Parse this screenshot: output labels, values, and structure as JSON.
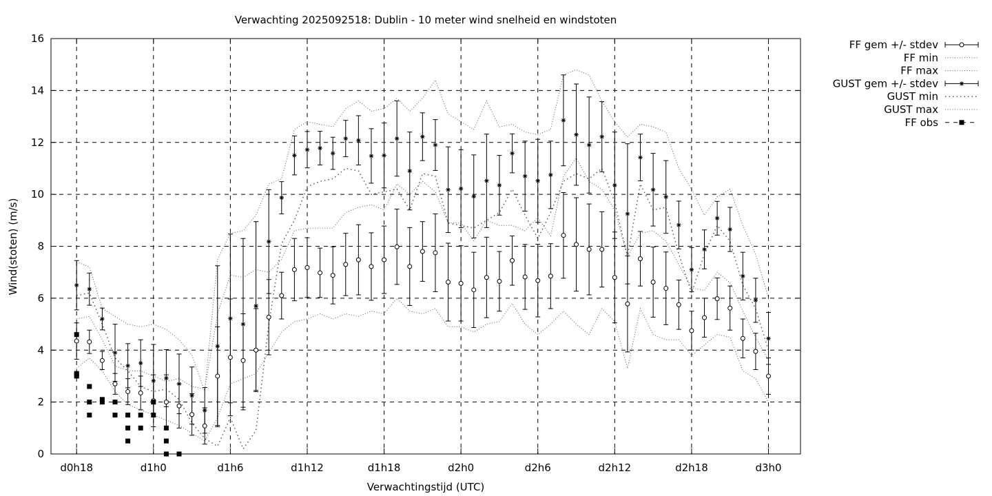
{
  "chart_data": {
    "type": "line",
    "title": "Verwachting 2025092518: Dublin - 10 meter wind snelheid en windstoten",
    "xlabel": "Verwachtingstijd (UTC)",
    "ylabel": "Wind(stoten) (m/s)",
    "x_unit": "hours since d0h18",
    "xlim": [
      -2,
      56.5
    ],
    "ylim": [
      0,
      16
    ],
    "yticks": [
      0,
      2,
      4,
      6,
      8,
      10,
      12,
      14,
      16
    ],
    "xticks": [
      {
        "x": 0,
        "label": "d0h18"
      },
      {
        "x": 6,
        "label": "d1h0"
      },
      {
        "x": 12,
        "label": "d1h6"
      },
      {
        "x": 18,
        "label": "d1h12"
      },
      {
        "x": 24,
        "label": "d1h18"
      },
      {
        "x": 30,
        "label": "d2h0"
      },
      {
        "x": 36,
        "label": "d2h6"
      },
      {
        "x": 42,
        "label": "d2h12"
      },
      {
        "x": 48,
        "label": "d2h18"
      },
      {
        "x": 54,
        "label": "d3h0"
      }
    ],
    "grid": true,
    "legend_position": "outside-top-right",
    "legend": [
      {
        "label": "FF gem +/- stdev",
        "style": "errorbar-circle"
      },
      {
        "label": "FF min",
        "style": "dotted"
      },
      {
        "label": "FF max",
        "style": "dotted"
      },
      {
        "label": "GUST gem +/- stdev",
        "style": "errorbar-star"
      },
      {
        "label": "GUST min",
        "style": "sparse-dotted"
      },
      {
        "label": "GUST max",
        "style": "dotted"
      },
      {
        "label": "FF obs",
        "style": "square-dashed"
      }
    ],
    "x": [
      0,
      1,
      2,
      3,
      4,
      5,
      6,
      7,
      8,
      9,
      10,
      11,
      12,
      13,
      14,
      15,
      16,
      17,
      18,
      19,
      20,
      21,
      22,
      23,
      24,
      25,
      26,
      27,
      28,
      29,
      30,
      31,
      32,
      33,
      34,
      35,
      36,
      37,
      38,
      39,
      40,
      41,
      42,
      43,
      44,
      45,
      46,
      47,
      48,
      49,
      50,
      51,
      52,
      53,
      54
    ],
    "ff_mean": [
      4.35,
      4.32,
      3.6,
      2.7,
      2.4,
      2.35,
      2.05,
      2.0,
      1.85,
      1.52,
      1.08,
      3.0,
      3.72,
      3.6,
      4.0,
      5.27,
      6.1,
      7.1,
      7.18,
      6.98,
      6.88,
      7.3,
      7.48,
      7.22,
      7.48,
      7.98,
      7.22,
      7.8,
      7.75,
      6.62,
      6.57,
      6.32,
      6.8,
      6.65,
      7.45,
      6.82,
      6.68,
      6.85,
      8.42,
      8.07,
      7.88,
      7.88,
      6.8,
      5.78,
      7.52,
      6.62,
      6.38,
      5.75,
      4.75,
      5.25,
      5.98,
      5.62,
      4.45,
      3.95,
      3.0
    ],
    "ff_sd": [
      0.7,
      0.45,
      0.35,
      0.4,
      0.5,
      0.65,
      1.0,
      1.05,
      0.85,
      0.8,
      0.7,
      1.9,
      2.25,
      1.8,
      1.6,
      1.45,
      0.9,
      1.2,
      1.15,
      0.95,
      1.1,
      1.2,
      1.35,
      1.3,
      1.3,
      1.45,
      1.5,
      1.15,
      1.5,
      1.5,
      1.45,
      1.45,
      1.55,
      1.15,
      0.95,
      1.25,
      1.4,
      1.25,
      1.65,
      1.8,
      1.75,
      1.45,
      1.75,
      1.85,
      1.05,
      1.35,
      1.4,
      0.95,
      0.75,
      0.75,
      0.8,
      0.85,
      0.75,
      0.7,
      0.7
    ],
    "ff_min": [
      3.3,
      3.7,
      3.2,
      2.4,
      1.9,
      1.7,
      1.5,
      1.3,
      1.1,
      0.8,
      0.5,
      1.4,
      2.7,
      2.9,
      3.1,
      3.9,
      4.7,
      5.1,
      5.2,
      5.4,
      5.2,
      5.4,
      5.3,
      5.5,
      5.4,
      6.0,
      5.5,
      5.4,
      5.6,
      4.9,
      4.9,
      4.7,
      5.0,
      5.1,
      5.8,
      5.0,
      4.6,
      5.0,
      5.5,
      5.0,
      4.6,
      5.6,
      5.1,
      3.3,
      5.6,
      4.6,
      4.4,
      4.4,
      3.8,
      4.2,
      4.6,
      4.5,
      3.2,
      2.9,
      2.0
    ],
    "ff_max": [
      5.2,
      5.3,
      4.4,
      3.4,
      3.2,
      3.2,
      3.0,
      2.8,
      2.9,
      2.6,
      2.5,
      5.4,
      6.9,
      6.8,
      7.1,
      7.0,
      7.5,
      8.6,
      8.7,
      8.7,
      8.7,
      9.3,
      9.5,
      9.6,
      9.4,
      10.4,
      10.0,
      10.5,
      10.1,
      8.9,
      8.9,
      8.2,
      9.0,
      8.8,
      8.8,
      8.6,
      9.1,
      8.4,
      10.7,
      11.4,
      10.5,
      10.2,
      9.4,
      7.6,
      8.5,
      8.6,
      8.2,
      7.3,
      6.4,
      6.3,
      7.0,
      6.6,
      5.5,
      4.5,
      3.6
    ],
    "gust_mean": [
      6.5,
      6.35,
      5.2,
      3.9,
      3.4,
      3.5,
      2.82,
      2.92,
      2.7,
      2.25,
      1.68,
      4.15,
      5.22,
      5.0,
      5.7,
      8.18,
      9.87,
      11.5,
      11.72,
      11.78,
      11.58,
      12.15,
      12.08,
      11.48,
      11.5,
      12.15,
      10.9,
      12.22,
      11.9,
      10.18,
      10.22,
      9.92,
      10.52,
      10.35,
      11.58,
      10.7,
      10.52,
      10.75,
      12.85,
      12.3,
      11.9,
      12.22,
      10.35,
      9.25,
      11.42,
      10.18,
      9.9,
      8.82,
      7.1,
      7.88,
      9.08,
      8.65,
      6.85,
      5.92,
      4.45
    ],
    "gust_sd": [
      0.95,
      0.62,
      0.42,
      1.1,
      0.85,
      0.9,
      1.4,
      1.1,
      1.15,
      1.1,
      0.88,
      3.1,
      3.25,
      3.3,
      3.25,
      2.0,
      0.62,
      0.75,
      0.7,
      0.65,
      0.62,
      0.7,
      0.95,
      1.05,
      1.25,
      1.45,
      1.5,
      0.92,
      0.98,
      1.65,
      1.5,
      1.6,
      1.8,
      1.15,
      0.75,
      1.35,
      1.6,
      1.3,
      1.75,
      1.95,
      1.85,
      1.35,
      2.05,
      2.7,
      0.9,
      1.4,
      1.4,
      0.92,
      0.85,
      0.75,
      0.65,
      0.85,
      0.92,
      0.85,
      1.0
    ],
    "gust_min": [
      6.1,
      6.2,
      5.0,
      3.7,
      3.2,
      2.6,
      2.4,
      2.5,
      2.1,
      1.2,
      0.6,
      0.3,
      1.4,
      0.2,
      0.9,
      5.0,
      8.1,
      9.0,
      10.3,
      10.5,
      10.6,
      11.0,
      10.9,
      10.0,
      10.1,
      10.2,
      9.4,
      10.8,
      10.7,
      8.9,
      8.8,
      8.7,
      9.0,
      9.3,
      10.2,
      9.2,
      8.3,
      9.3,
      10.5,
      10.8,
      10.6,
      11.0,
      9.7,
      7.6,
      10.4,
      9.4,
      9.5,
      7.7,
      6.2,
      7.7,
      8.8,
      8.2,
      6.5,
      5.6,
      4.0
    ],
    "gust_max": [
      7.4,
      7.2,
      5.6,
      5.3,
      5.0,
      4.9,
      5.0,
      4.8,
      4.4,
      3.8,
      2.4,
      7.5,
      8.5,
      8.6,
      9.2,
      10.4,
      10.6,
      12.5,
      12.8,
      12.7,
      12.6,
      13.3,
      13.6,
      13.2,
      13.3,
      13.7,
      13.2,
      13.7,
      14.4,
      13.1,
      12.8,
      12.5,
      13.6,
      12.6,
      12.7,
      12.4,
      12.3,
      12.5,
      14.6,
      14.8,
      14.6,
      13.6,
      12.8,
      12.2,
      12.7,
      12.6,
      12.4,
      11.0,
      10.2,
      9.2,
      9.9,
      10.2,
      8.8,
      7.7,
      6.0
    ],
    "ff_obs": [
      [
        0,
        4.6
      ],
      [
        0,
        3.1
      ],
      [
        0,
        3.05
      ],
      [
        0,
        3.0
      ],
      [
        1,
        2.6
      ],
      [
        1,
        2.0
      ],
      [
        1,
        1.5
      ],
      [
        2,
        2.1
      ],
      [
        2,
        2.0
      ],
      [
        3,
        2.0
      ],
      [
        3,
        1.5
      ],
      [
        4,
        1.5
      ],
      [
        4,
        1.0
      ],
      [
        4,
        0.5
      ],
      [
        5,
        1.5
      ],
      [
        5,
        1.0
      ],
      [
        6,
        2.0
      ],
      [
        6,
        1.5
      ],
      [
        7,
        1.0
      ],
      [
        7,
        0.5
      ],
      [
        7,
        0.0
      ],
      [
        8,
        0.0
      ]
    ]
  }
}
